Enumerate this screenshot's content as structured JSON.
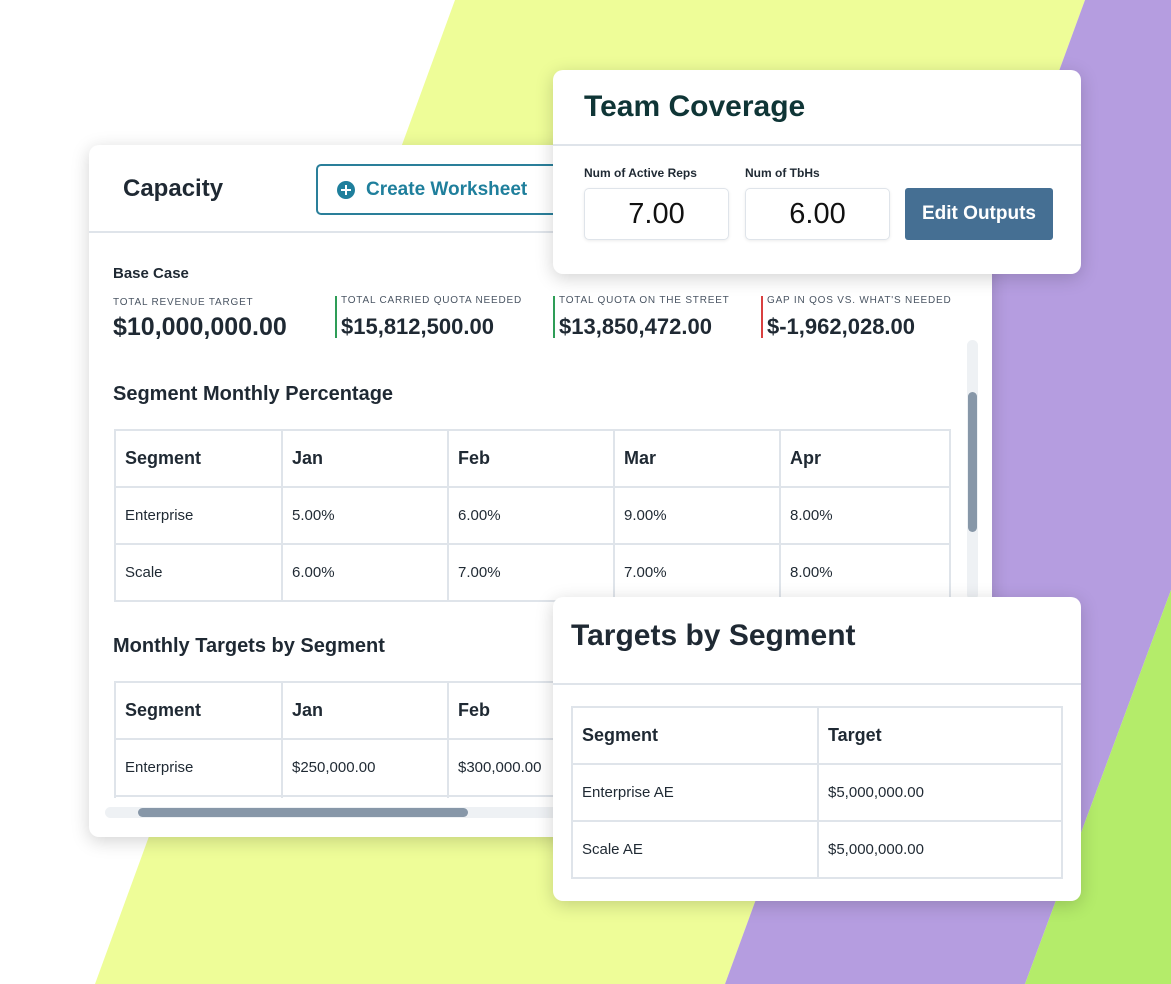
{
  "capacity": {
    "title": "Capacity",
    "button": "Create Worksheet",
    "section": "Base Case",
    "metrics": [
      {
        "label": "TOTAL REVENUE TARGET",
        "value": "$10,000,000.00"
      },
      {
        "label": "TOTAL CARRIED QUOTA NEEDED",
        "value": "$15,812,500.00"
      },
      {
        "label": "TOTAL QUOTA ON THE STREET",
        "value": "$13,850,472.00"
      },
      {
        "label": "GAP IN QOS VS. WHAT'S NEEDED",
        "value": "$-1,962,028.00"
      }
    ],
    "segment_monthly": {
      "title": "Segment Monthly Percentage",
      "header": [
        "Segment",
        "Jan",
        "Feb",
        "Mar",
        "Apr"
      ],
      "rows": [
        [
          "Enterprise",
          "5.00%",
          "6.00%",
          "9.00%",
          "8.00%"
        ],
        [
          "Scale",
          "6.00%",
          "7.00%",
          "7.00%",
          "8.00%"
        ]
      ]
    },
    "monthly_targets": {
      "title": "Monthly Targets by Segment",
      "header": [
        "Segment",
        "Jan",
        "Feb"
      ],
      "rows": [
        [
          "Enterprise",
          "$250,000.00",
          "$300,000.00"
        ]
      ]
    }
  },
  "team_coverage": {
    "title": "Team Coverage",
    "fields": [
      {
        "label": "Num of Active Reps",
        "value": "7.00"
      },
      {
        "label": "Num of TbHs",
        "value": "6.00"
      }
    ],
    "button": "Edit Outputs"
  },
  "targets_by_segment": {
    "title": "Targets by Segment",
    "header": [
      "Segment",
      "Target"
    ],
    "rows": [
      [
        "Enterprise AE",
        "$5,000,000.00"
      ],
      [
        "Scale AE",
        "$5,000,000.00"
      ]
    ]
  }
}
